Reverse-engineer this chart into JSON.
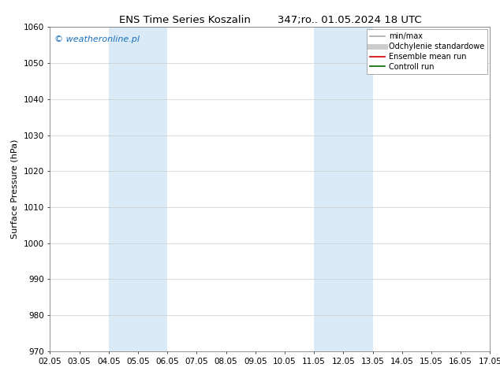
{
  "title": "ENS Time Series Koszalin        347;ro.. 01.05.2024 18 UTC",
  "ylabel": "Surface Pressure (hPa)",
  "ylim": [
    970,
    1060
  ],
  "yticks": [
    970,
    980,
    990,
    1000,
    1010,
    1020,
    1030,
    1040,
    1050,
    1060
  ],
  "xtick_labels": [
    "02.05",
    "03.05",
    "04.05",
    "05.05",
    "06.05",
    "07.05",
    "08.05",
    "09.05",
    "10.05",
    "11.05",
    "12.05",
    "13.05",
    "14.05",
    "15.05",
    "16.05",
    "17.05"
  ],
  "xtick_positions": [
    0,
    1,
    2,
    3,
    4,
    5,
    6,
    7,
    8,
    9,
    10,
    11,
    12,
    13,
    14,
    15
  ],
  "shaded_regions": [
    {
      "x_start": 2,
      "x_end": 4,
      "color": "#daeaf6"
    },
    {
      "x_start": 9,
      "x_end": 11,
      "color": "#daeaf6"
    }
  ],
  "watermark": "© weatheronline.pl",
  "watermark_color": "#1a6fba",
  "background_color": "#ffffff",
  "plot_bg_color": "#ffffff",
  "grid_color": "#cccccc",
  "legend_items": [
    {
      "label": "min/max",
      "color": "#aaaaaa",
      "lw": 1.2
    },
    {
      "label": "Odchylenie standardowe",
      "color": "#cccccc",
      "lw": 5
    },
    {
      "label": "Ensemble mean run",
      "color": "#cc0000",
      "lw": 1.2
    },
    {
      "label": "Controll run",
      "color": "#006600",
      "lw": 1.2
    }
  ],
  "title_fontsize": 9.5,
  "axis_label_fontsize": 8,
  "tick_fontsize": 7.5,
  "watermark_fontsize": 8,
  "legend_fontsize": 7
}
